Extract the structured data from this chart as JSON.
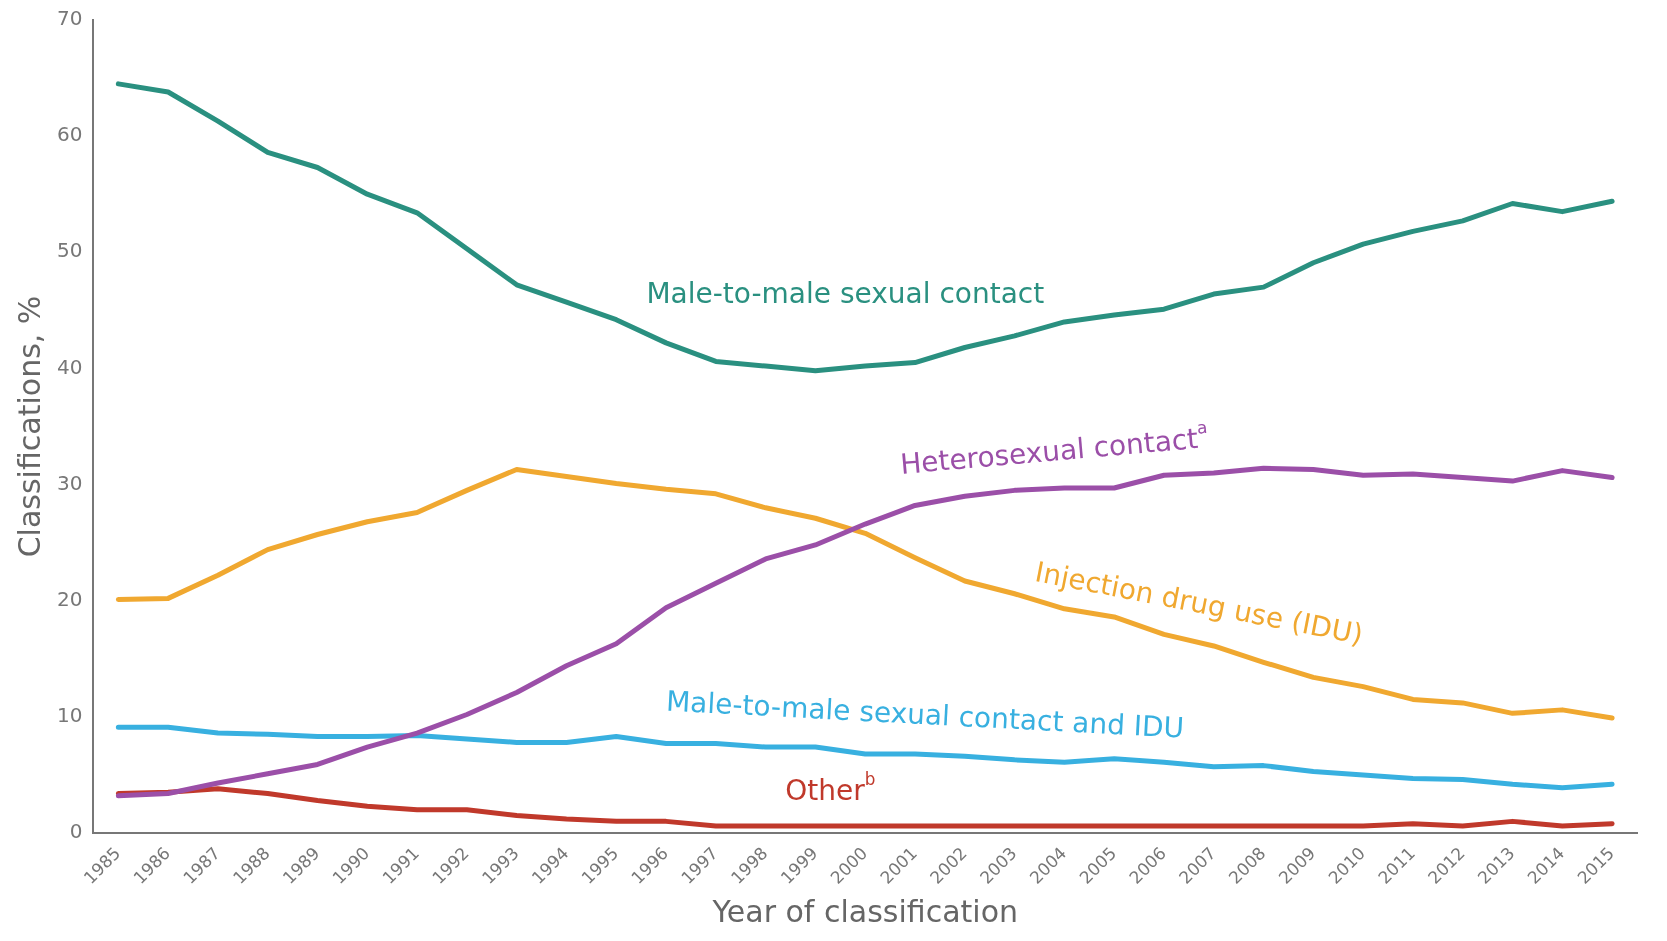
{
  "chart_data": {
    "type": "line",
    "xlabel": "Year of classification",
    "ylabel": "Classifications, %",
    "categories": [
      "1985",
      "1986",
      "1987",
      "1988",
      "1989",
      "1990",
      "1991",
      "1992",
      "1993",
      "1994",
      "1995",
      "1996",
      "1997",
      "1998",
      "1999",
      "2000",
      "2001",
      "2002",
      "2003",
      "2004",
      "2005",
      "2006",
      "2007",
      "2008",
      "2009",
      "2010",
      "2011",
      "2012",
      "2013",
      "2014",
      "2015"
    ],
    "ylim": [
      0,
      70
    ],
    "yticks": [
      0,
      10,
      20,
      30,
      40,
      50,
      60,
      70
    ],
    "grid": false,
    "legend": false,
    "marker": "none",
    "line_style": "solid",
    "series": [
      {
        "name": "Male-to-male sexual contact",
        "color": "#2a9080",
        "values": [
          64.5,
          63.8,
          61.3,
          58.6,
          57.3,
          55,
          53.4,
          50.3,
          47.2,
          45.7,
          44.2,
          42.2,
          40.6,
          40.2,
          39.8,
          40.2,
          40.5,
          41.8,
          42.8,
          44,
          44.6,
          45.1,
          46.4,
          47,
          49.1,
          50.7,
          51.8,
          52.7,
          54.2,
          53.5,
          54.4
        ]
      },
      {
        "name": "Heterosexual contact$^{a}$",
        "color": "#9b4fa8",
        "values": [
          3.2,
          3.4,
          4.3,
          5.1,
          5.9,
          7.4,
          8.6,
          10.2,
          12.1,
          14.4,
          16.3,
          19.4,
          21.5,
          23.6,
          24.8,
          26.6,
          28.2,
          29,
          29.5,
          29.7,
          29.7,
          30.8,
          31,
          31.4,
          31.3,
          30.8,
          30.9,
          30.6,
          30.3,
          31.2,
          30.6
        ]
      },
      {
        "name": "Injection drug use (IDU)",
        "color": "#f0a830",
        "values": [
          20.1,
          20.2,
          22.2,
          24.4,
          25.7,
          26.8,
          27.6,
          29.5,
          31.3,
          30.7,
          30.1,
          29.6,
          29.2,
          28,
          27.1,
          25.8,
          23.7,
          21.7,
          20.6,
          19.3,
          18.6,
          17.1,
          16.1,
          14.7,
          13.4,
          12.6,
          11.5,
          11.2,
          10.3,
          10.6,
          9.9
        ]
      },
      {
        "name": "Male-to-male sexual contact and IDU",
        "color": "#38b0e0",
        "values": [
          9.1,
          9.1,
          8.6,
          8.5,
          8.3,
          8.3,
          8.4,
          8.1,
          7.8,
          7.8,
          8.3,
          7.7,
          7.7,
          7.4,
          7.4,
          6.8,
          6.8,
          6.6,
          6.3,
          6.1,
          6.4,
          6.1,
          5.7,
          5.8,
          5.3,
          5,
          4.7,
          4.6,
          4.2,
          3.9,
          4.2
        ]
      },
      {
        "name": "Other$^{b}$",
        "color": "#c0392b",
        "values": [
          3.4,
          3.5,
          3.8,
          3.4,
          2.8,
          2.3,
          2,
          2,
          1.5,
          1.2,
          1,
          1,
          0.6,
          0.6,
          0.6,
          0.6,
          0.6,
          0.6,
          0.6,
          0.6,
          0.6,
          0.6,
          0.6,
          0.6,
          0.6,
          0.6,
          0.8,
          0.6,
          1,
          0.6,
          0.8
        ]
      }
    ]
  }
}
